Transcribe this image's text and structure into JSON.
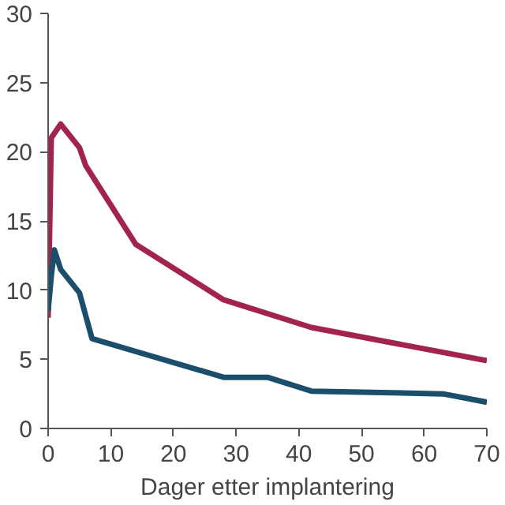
{
  "chart_data": {
    "type": "line",
    "xlabel": "Dager etter implantering",
    "xlim": [
      0,
      70
    ],
    "xticks": [
      0,
      10,
      20,
      30,
      40,
      50,
      60,
      70
    ],
    "ylim": [
      0,
      30
    ],
    "yticks": [
      0,
      5,
      10,
      15,
      20,
      25,
      30
    ],
    "grid": false,
    "line_style": "solid",
    "series": [
      {
        "color": "#a3234f",
        "x": [
          0,
          0.5,
          2,
          5,
          6,
          14,
          28,
          42,
          70
        ],
        "values": [
          8,
          21,
          22,
          20.3,
          19,
          13.3,
          9.3,
          7.3,
          4.9
        ]
      },
      {
        "color": "#1b4e6b",
        "x": [
          0,
          0.5,
          1,
          2,
          5,
          7,
          28,
          35,
          42,
          63,
          70
        ],
        "values": [
          8.5,
          11,
          12.9,
          11.5,
          9.8,
          6.5,
          3.7,
          3.7,
          2.7,
          2.5,
          1.9
        ]
      }
    ]
  }
}
